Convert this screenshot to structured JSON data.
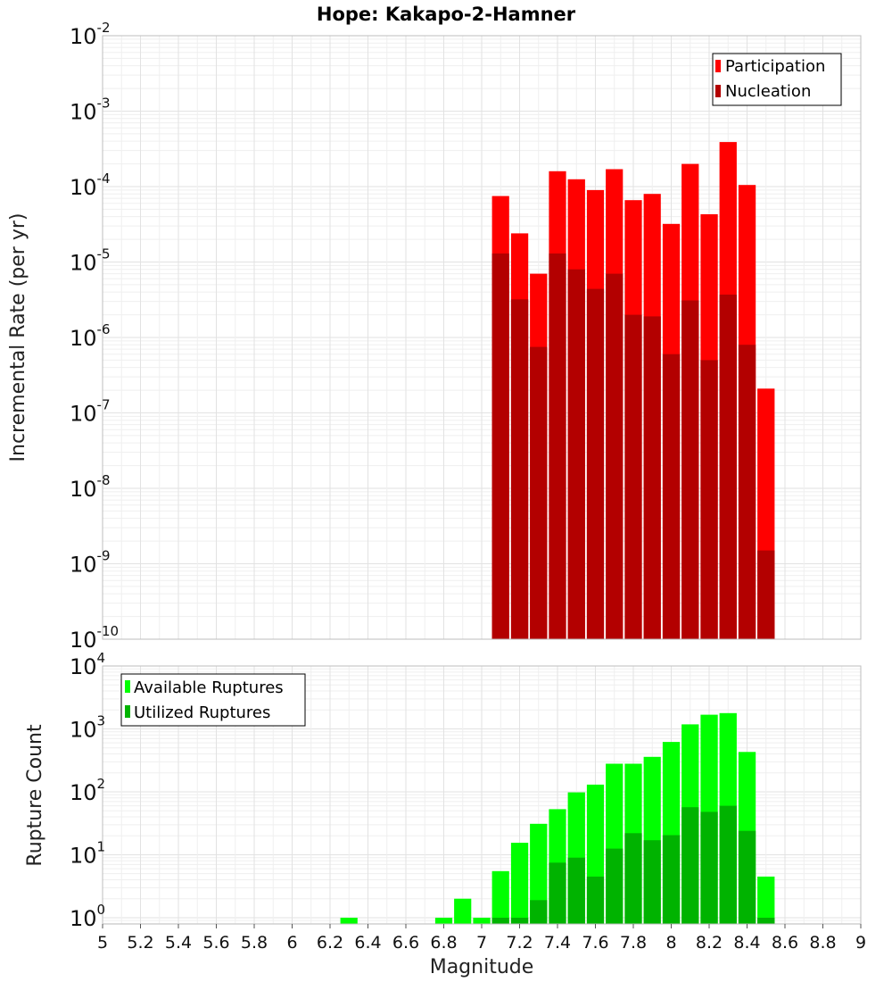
{
  "title": "Hope: Kakapo-2-Hamner",
  "chart_data": [
    {
      "type": "bar",
      "id": "rate",
      "ylabel": "Incremental Rate (per yr)",
      "yscale": "log",
      "ylim_exp": [
        -10,
        -2
      ],
      "bin_width": 0.1,
      "x": [
        7.1,
        7.2,
        7.3,
        7.4,
        7.5,
        7.6,
        7.7,
        7.8,
        7.9,
        8.0,
        8.1,
        8.2,
        8.3,
        8.4,
        8.5
      ],
      "series": [
        {
          "name": "Participation",
          "color": "#ff0000",
          "values": [
            7.5e-05,
            2.4e-05,
            7e-06,
            0.00016,
            0.000125,
            9e-05,
            0.00017,
            6.6e-05,
            8e-05,
            3.2e-05,
            0.0002,
            4.3e-05,
            0.00039,
            0.000105,
            2.1e-07
          ]
        },
        {
          "name": "Nucleation",
          "color": "#b30000",
          "values": [
            1.3e-05,
            3.2e-06,
            7.5e-07,
            1.3e-05,
            8e-06,
            4.4e-06,
            7e-06,
            2e-06,
            1.9e-06,
            6e-07,
            3.1e-06,
            5e-07,
            3.7e-06,
            8e-07,
            1.5e-09
          ]
        }
      ],
      "legend_position": "top-right"
    },
    {
      "type": "bar",
      "id": "count",
      "ylabel": "Rupture Count",
      "yscale": "log",
      "ylim_exp": [
        -0.1,
        4
      ],
      "bin_width": 0.1,
      "x": [
        6.3,
        6.8,
        6.9,
        7.0,
        7.1,
        7.2,
        7.3,
        7.4,
        7.5,
        7.6,
        7.7,
        7.8,
        7.9,
        8.0,
        8.1,
        8.2,
        8.3,
        8.4,
        8.5
      ],
      "series": [
        {
          "name": "Available Ruptures",
          "color": "#00ff00",
          "values": [
            1,
            1,
            2,
            1,
            5.5,
            15.5,
            31,
            53,
            98,
            130,
            280,
            280,
            360,
            620,
            1180,
            1680,
            1780,
            430,
            4.5
          ]
        },
        {
          "name": "Utilized Ruptures",
          "color": "#00b300",
          "values": [
            0,
            0,
            0,
            0,
            1,
            1,
            1.9,
            7.5,
            9,
            4.5,
            12.5,
            22,
            17,
            20.5,
            57,
            48,
            60,
            24,
            1
          ]
        }
      ],
      "legend_position": "top-left",
      "xlabel": "Magnitude",
      "xlim": [
        5,
        9
      ],
      "xticks": [
        5,
        5.2,
        5.4,
        5.6,
        5.8,
        6,
        6.2,
        6.4,
        6.6,
        6.8,
        7,
        7.2,
        7.4,
        7.6,
        7.8,
        8,
        8.2,
        8.4,
        8.6,
        8.8,
        9
      ],
      "xtick_labels": [
        "5",
        "5.2",
        "5.4",
        "5.6",
        "5.8",
        "6",
        "6.2",
        "6.4",
        "6.6",
        "6.8",
        "7",
        "7.2",
        "7.4",
        "7.6",
        "7.8",
        "8",
        "8.2",
        "8.4",
        "8.6",
        "8.8",
        "9"
      ]
    }
  ]
}
